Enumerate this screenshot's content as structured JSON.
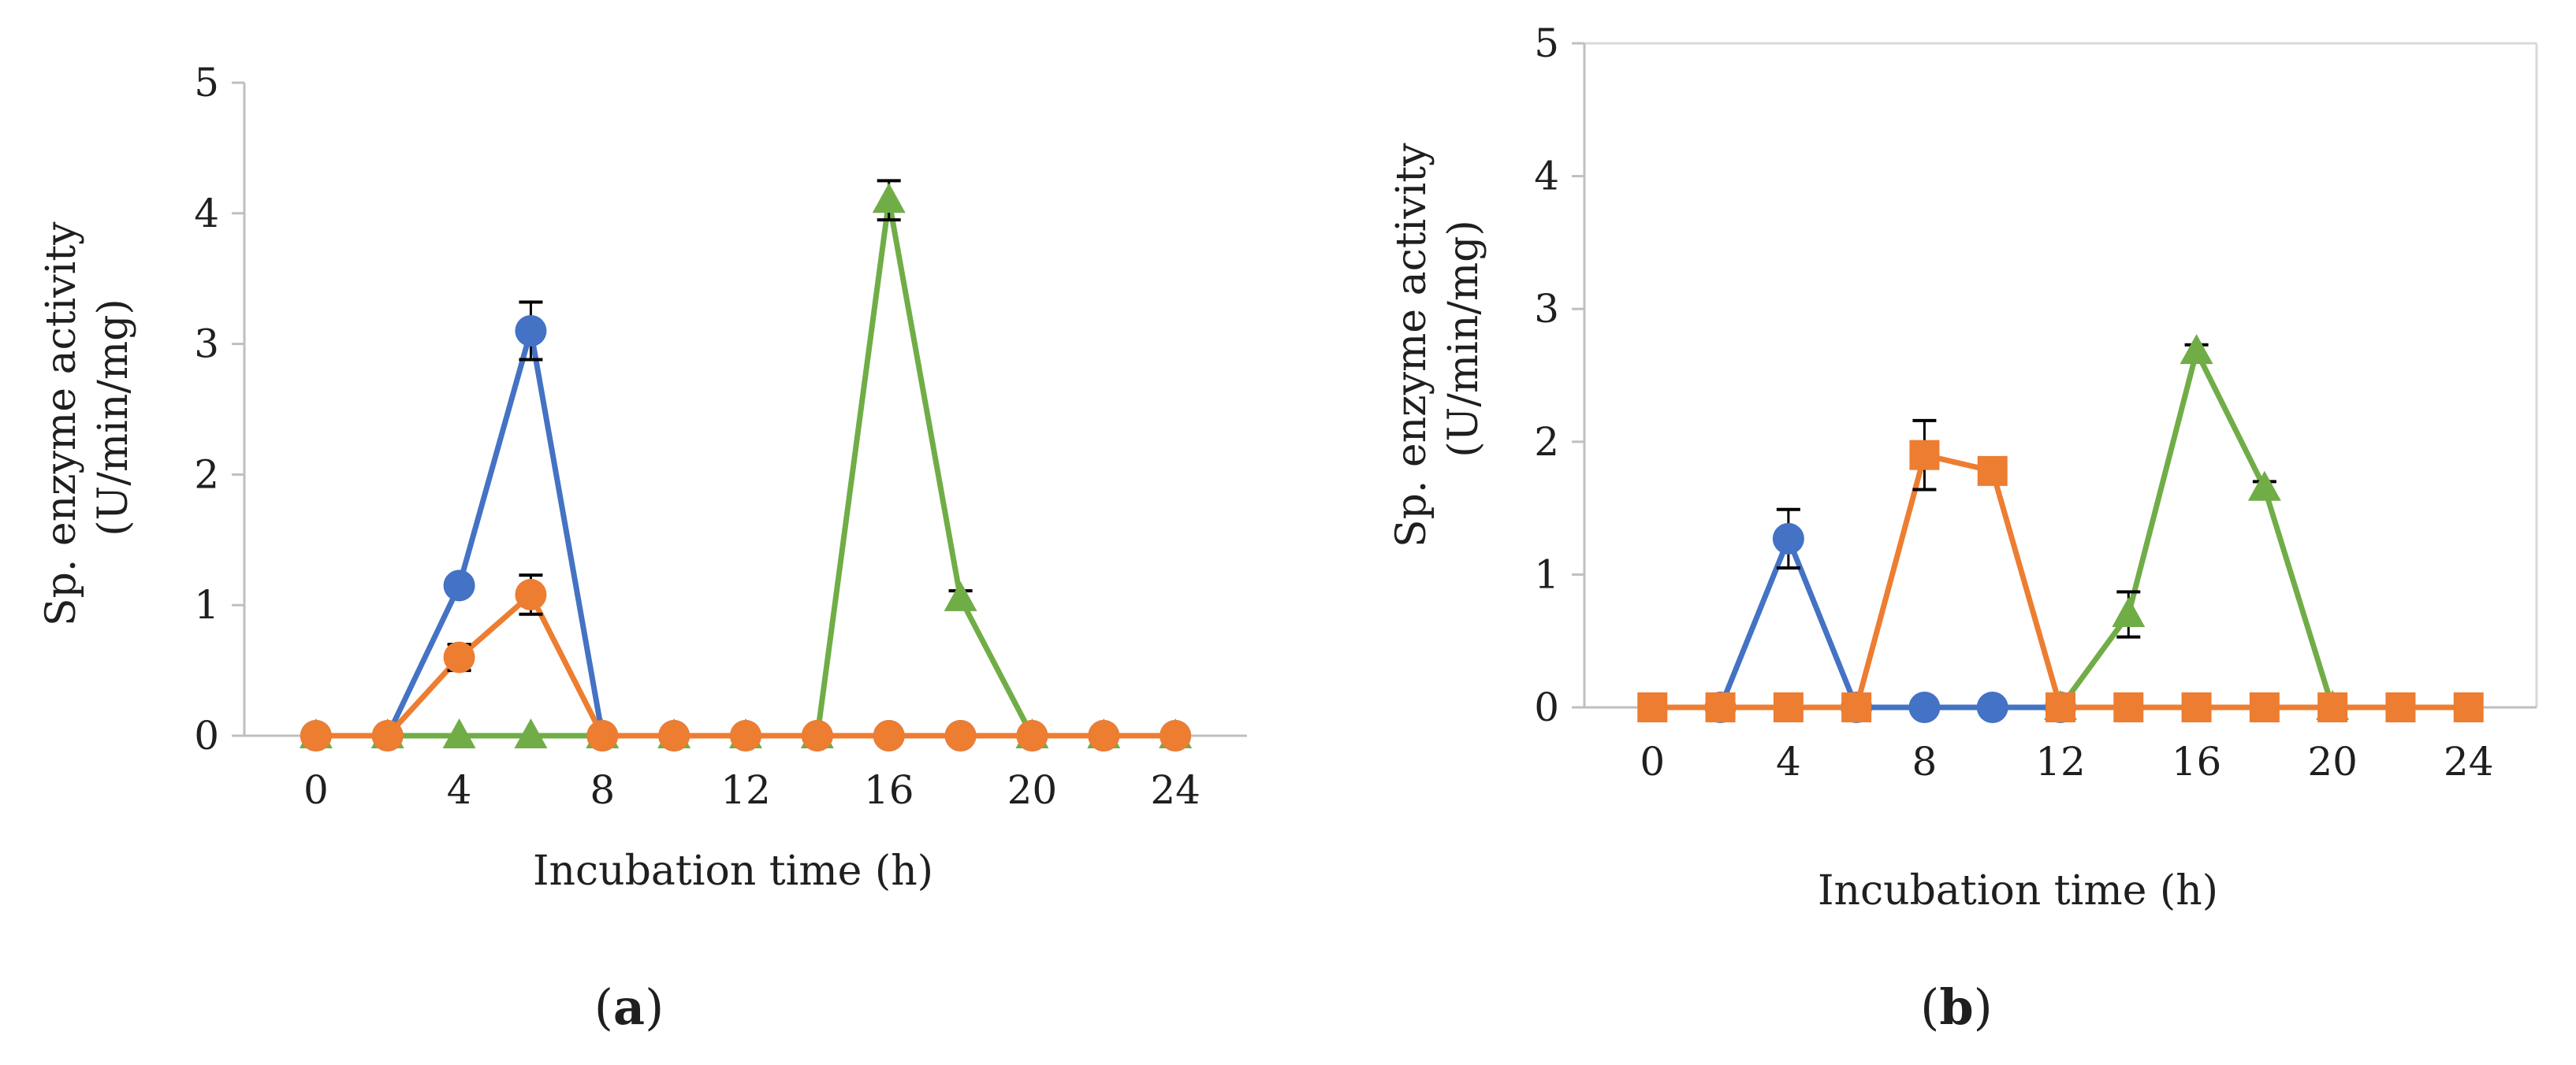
{
  "chart_data": [
    {
      "type": "line",
      "panel_label": {
        "open": "(",
        "letter": "a",
        "close": ")"
      },
      "xlabel": "Incubation time (h)",
      "ylabel_lines": [
        "Sp. enzyme activity",
        "(U/min/mg)"
      ],
      "ylim": [
        0,
        5
      ],
      "xlim": [
        -2,
        26
      ],
      "yticks": [
        0,
        1,
        2,
        3,
        4,
        5
      ],
      "xticks": [
        0,
        4,
        8,
        12,
        16,
        20,
        24
      ],
      "grid": false,
      "legend": "none",
      "series": [
        {
          "name": "blue-series",
          "color": "#4472C4",
          "marker": "circle",
          "x": [
            0,
            2,
            4,
            6,
            8,
            10,
            12,
            14,
            16,
            18,
            20,
            22,
            24
          ],
          "y": [
            0,
            0,
            1.15,
            3.1,
            0,
            0,
            0,
            0,
            0,
            0,
            0,
            0,
            0
          ],
          "err": [
            0,
            0,
            0,
            0.22,
            0,
            0,
            0,
            0,
            0,
            0,
            0,
            0,
            0
          ]
        },
        {
          "name": "green-series",
          "color": "#70AD47",
          "marker": "triangle",
          "x": [
            0,
            2,
            4,
            6,
            8,
            10,
            12,
            14,
            16,
            18,
            20,
            22,
            24
          ],
          "y": [
            0,
            0,
            0,
            0,
            0,
            0,
            0,
            0,
            4.1,
            1.05,
            0,
            0,
            0
          ],
          "err": [
            0,
            0,
            0,
            0,
            0,
            0,
            0,
            0,
            0.15,
            0.06,
            0,
            0,
            0
          ]
        },
        {
          "name": "orange-series",
          "color": "#ED7D31",
          "marker": "circle",
          "x": [
            0,
            2,
            4,
            6,
            8,
            10,
            12,
            14,
            16,
            18,
            20,
            22,
            24
          ],
          "y": [
            0,
            0,
            0.6,
            1.08,
            0,
            0,
            0,
            0,
            0,
            0,
            0,
            0,
            0
          ],
          "err": [
            0,
            0,
            0.1,
            0.15,
            0,
            0,
            0,
            0,
            0,
            0,
            0,
            0,
            0
          ]
        }
      ]
    },
    {
      "type": "line",
      "panel_label": {
        "open": "(",
        "letter": "b",
        "close": ")"
      },
      "xlabel": "Incubation time (h)",
      "ylabel_lines": [
        "Sp. enzyme activity",
        "(U/min/mg)"
      ],
      "ylim": [
        0,
        5
      ],
      "xlim": [
        -2,
        26
      ],
      "yticks": [
        0,
        1,
        2,
        3,
        4,
        5
      ],
      "xticks": [
        0,
        4,
        8,
        12,
        16,
        20,
        24
      ],
      "grid": false,
      "legend": "none",
      "series": [
        {
          "name": "blue-series",
          "color": "#4472C4",
          "marker": "circle",
          "x": [
            2,
            4,
            6,
            8,
            10,
            12
          ],
          "y": [
            0,
            1.27,
            0,
            0,
            0,
            0
          ],
          "err": [
            0,
            0.22,
            0,
            0,
            0,
            0
          ]
        },
        {
          "name": "green-series",
          "color": "#70AD47",
          "marker": "triangle",
          "x": [
            12,
            14,
            16,
            18,
            20
          ],
          "y": [
            0,
            0.7,
            2.68,
            1.65,
            0
          ],
          "err": [
            0,
            0.17,
            0.05,
            0.05,
            0
          ]
        },
        {
          "name": "orange-series",
          "color": "#ED7D31",
          "marker": "square",
          "x": [
            0,
            2,
            4,
            6,
            8,
            10,
            12,
            14,
            16,
            18,
            20,
            22,
            24
          ],
          "y": [
            0,
            0,
            0,
            0,
            1.9,
            1.78,
            0,
            0,
            0,
            0,
            0,
            0,
            0
          ],
          "err": [
            0,
            0,
            0,
            0,
            0.26,
            0,
            0,
            0,
            0,
            0,
            0,
            0,
            0
          ]
        }
      ]
    }
  ]
}
